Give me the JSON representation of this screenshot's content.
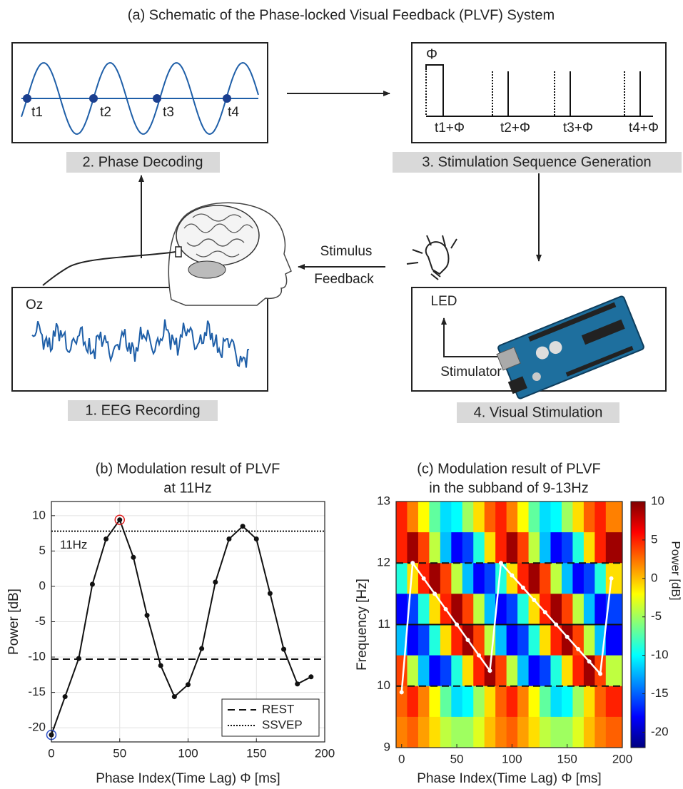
{
  "diagram": {
    "title": "(a) Schematic of the Phase-locked Visual Feedback (PLVF) System",
    "phase_decoding": {
      "label": "2. Phase Decoding",
      "markers": [
        "t1",
        "t2",
        "t3",
        "t4"
      ]
    },
    "sequence": {
      "label": "3. Stimulation Sequence Generation",
      "phi": "Φ",
      "markers": [
        "t1+Φ",
        "t2+Φ",
        "t3+Φ",
        "t4+Φ"
      ]
    },
    "eeg": {
      "label": "1. EEG Recording",
      "channel": "Oz"
    },
    "stimulation": {
      "label": "4. Visual Stimulation",
      "led": "LED",
      "stimulator": "Stimulator"
    },
    "feedback": [
      "Stimulus",
      "Feedback"
    ]
  },
  "chart_data": [
    {
      "type": "line",
      "title": [
        "(b) Modulation result of PLVF",
        "at 11Hz"
      ],
      "x_label": "Phase Index(Time Lag) Φ [ms]",
      "y_label": "Power [dB]",
      "x": [
        0,
        10,
        20,
        30,
        40,
        50,
        60,
        70,
        80,
        90,
        100,
        110,
        120,
        130,
        140,
        150,
        160,
        170,
        180,
        190
      ],
      "values": [
        -21,
        -15.6,
        -10.2,
        0.3,
        6.7,
        9.4,
        4.1,
        -4.1,
        -11.2,
        -15.6,
        -13.9,
        -8.8,
        0.6,
        6.7,
        8.5,
        6.7,
        -1,
        -8.9,
        -13.8,
        -12.8
      ],
      "color": "#111111",
      "highlights": [
        {
          "index": 0,
          "color": "#2b4fc7"
        },
        {
          "index": 5,
          "color": "#e02020"
        }
      ],
      "reference_lines": [
        {
          "name": "REST",
          "value": -10.3,
          "style": "dashed"
        },
        {
          "name": "SSVEP",
          "value": 7.8,
          "style": "dotted"
        }
      ],
      "annotation": "11Hz",
      "xlim": [
        0,
        200
      ],
      "xticks": [
        0,
        50,
        100,
        150,
        200
      ],
      "ylim": [
        -22,
        12
      ],
      "yticks": [
        -20,
        -15,
        -10,
        -5,
        0,
        5,
        10
      ],
      "grid": true,
      "legend": "lower right"
    },
    {
      "type": "heatmap",
      "title": [
        "(c) Modulation result of PLVF",
        "in the subband of 9-13Hz"
      ],
      "x_label": "Phase Index(Time Lag) Φ [ms]",
      "y_label": "Frequency [Hz]",
      "z_label": "Power [dB]",
      "x": [
        0,
        10,
        20,
        30,
        40,
        50,
        60,
        70,
        80,
        90,
        100,
        110,
        120,
        130,
        140,
        150,
        160,
        170,
        180,
        190
      ],
      "y": [
        12.75,
        12.25,
        11.75,
        11.25,
        10.75,
        10.25,
        9.75,
        9.25
      ],
      "z": [
        [
          5,
          2,
          -2,
          -7,
          -11,
          -10,
          -5,
          -1,
          3,
          5,
          2,
          -2,
          -7,
          -11,
          -10,
          -5,
          -1,
          3,
          5,
          2
        ],
        [
          5,
          9,
          4,
          -4,
          -12,
          -18,
          -16,
          -9,
          -1,
          5,
          9,
          4,
          -4,
          -12,
          -18,
          -16,
          -9,
          -1,
          5,
          9
        ],
        [
          -9,
          -1,
          5,
          9,
          4,
          -4,
          -12,
          -18,
          -16,
          -9,
          -1,
          5,
          9,
          4,
          -4,
          -12,
          -18,
          -16,
          -9,
          -1
        ],
        [
          -18,
          -16,
          -9,
          -1,
          5,
          9,
          4,
          -4,
          -12,
          -18,
          -16,
          -9,
          -1,
          5,
          9,
          4,
          -4,
          -12,
          -18,
          -16
        ],
        [
          -12,
          -18,
          -16,
          -9,
          -1,
          5,
          9,
          4,
          -4,
          -12,
          -18,
          -16,
          -9,
          -1,
          5,
          9,
          4,
          -4,
          -12,
          -18
        ],
        [
          4,
          -4,
          -12,
          -18,
          -16,
          -9,
          -1,
          5,
          9,
          4,
          -4,
          -12,
          -18,
          -16,
          -9,
          -1,
          5,
          9,
          4,
          -4
        ],
        [
          3,
          5,
          2,
          -2,
          -7,
          -11,
          -10,
          -5,
          -1,
          3,
          5,
          2,
          -2,
          -7,
          -11,
          -10,
          -5,
          -1,
          3,
          5
        ],
        [
          2,
          3,
          1,
          -1,
          -4,
          -5,
          -5,
          -3,
          0,
          2,
          3,
          1,
          -1,
          -4,
          -5,
          -5,
          -3,
          0,
          2,
          3
        ]
      ],
      "zlim": [
        -22,
        10
      ],
      "zticks": [
        -20,
        -15,
        -10,
        -5,
        0,
        5,
        10
      ],
      "hlines": [
        {
          "value": 12,
          "style": "dashed"
        },
        {
          "value": 11,
          "style": "solid"
        },
        {
          "value": 10,
          "style": "dashed"
        }
      ],
      "series": [
        {
          "color": "#ffffff",
          "x": [
            0,
            10,
            20,
            30,
            40,
            50,
            60,
            70,
            80,
            90,
            100,
            110,
            120,
            130,
            140,
            150,
            160,
            170,
            180,
            190
          ],
          "values": [
            9.9,
            12,
            11.75,
            11.5,
            11.25,
            11,
            10.75,
            10.5,
            10.25,
            12,
            11.8,
            11.6,
            11.4,
            11.2,
            11,
            10.8,
            10.6,
            10.4,
            10.2,
            11.75
          ]
        }
      ],
      "xlim": [
        -5,
        200
      ],
      "xticks": [
        0,
        50,
        100,
        150,
        200
      ],
      "ylim": [
        9,
        13
      ],
      "yticks": [
        9,
        10,
        11,
        12,
        13
      ]
    }
  ]
}
